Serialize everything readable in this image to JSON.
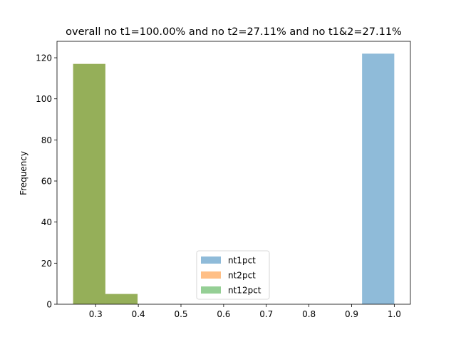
{
  "chart_data": {
    "type": "bar",
    "title": "overall no t1=100.00% and no t2=27.11% and no t1&2=27.11%",
    "xlabel": "",
    "ylabel": "Frequency",
    "xlim": [
      0.2094,
      1.0378
    ],
    "ylim": [
      0,
      128
    ],
    "xticks": [
      "0.3",
      "0.4",
      "0.5",
      "0.6",
      "0.7",
      "0.8",
      "0.9",
      "1.0"
    ],
    "yticks": [
      "0",
      "20",
      "40",
      "60",
      "80",
      "100",
      "120"
    ],
    "legend_position": "lower-center",
    "series": [
      {
        "name": "nt1pct",
        "color": "#1f77b4",
        "bins": [
          {
            "x0": 0.9245,
            "x1": 1.0,
            "count": 122
          }
        ]
      },
      {
        "name": "nt2pct",
        "color": "#ff7f0e",
        "bins": [
          {
            "x0": 0.2472,
            "x1": 0.3228,
            "count": 117
          },
          {
            "x0": 0.3228,
            "x1": 0.3983,
            "count": 5
          }
        ]
      },
      {
        "name": "nt12pct",
        "color": "#2ca02c",
        "bins": [
          {
            "x0": 0.2472,
            "x1": 0.3228,
            "count": 117
          },
          {
            "x0": 0.3228,
            "x1": 0.3983,
            "count": 5
          }
        ]
      }
    ],
    "opacity": 0.5
  }
}
